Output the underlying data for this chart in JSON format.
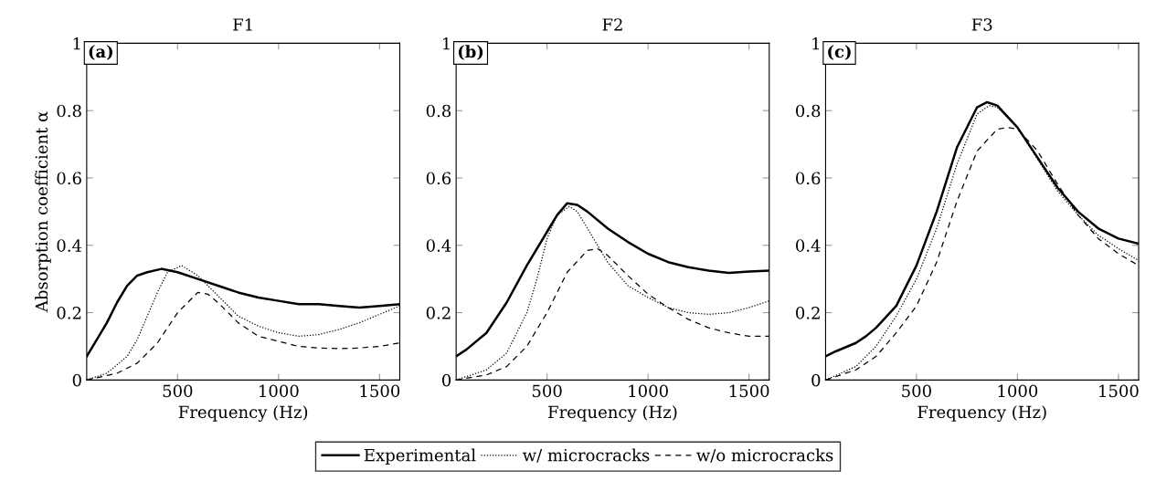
{
  "chart_data": [
    {
      "type": "line",
      "title": "F1",
      "xlabel": "Frequency (Hz)",
      "ylabel": "Absorption coefficient α",
      "annotations": [
        "(a)"
      ],
      "xlim": [
        50,
        1600
      ],
      "xticks": [
        500,
        1000,
        1500
      ],
      "ylim": [
        0,
        1
      ],
      "yticks": [
        0,
        0.2,
        0.4,
        0.6,
        0.8,
        1
      ],
      "legend": "bottom",
      "grid": false,
      "series": [
        {
          "name": "Experimental",
          "color": "#000000",
          "line_style": "solid",
          "x": [
            50,
            100,
            150,
            200,
            250,
            300,
            350,
            420,
            500,
            600,
            700,
            800,
            900,
            1000,
            1100,
            1200,
            1300,
            1400,
            1500,
            1600
          ],
          "values": [
            0.07,
            0.12,
            0.17,
            0.23,
            0.28,
            0.31,
            0.32,
            0.33,
            0.32,
            0.3,
            0.28,
            0.26,
            0.245,
            0.235,
            0.225,
            0.225,
            0.22,
            0.215,
            0.22,
            0.225
          ]
        },
        {
          "name": "w/ microcracks",
          "color": "#000000",
          "line_style": "dotted",
          "x": [
            50,
            150,
            250,
            300,
            350,
            400,
            450,
            520,
            600,
            700,
            800,
            900,
            1000,
            1100,
            1200,
            1300,
            1400,
            1500,
            1600
          ],
          "values": [
            0,
            0.02,
            0.07,
            0.12,
            0.19,
            0.26,
            0.32,
            0.34,
            0.31,
            0.25,
            0.19,
            0.16,
            0.14,
            0.13,
            0.135,
            0.15,
            0.17,
            0.195,
            0.22
          ]
        },
        {
          "name": "w/o microcracks",
          "color": "#000000",
          "line_style": "dashed",
          "x": [
            50,
            200,
            300,
            400,
            500,
            600,
            650,
            700,
            800,
            900,
            1000,
            1100,
            1200,
            1300,
            1400,
            1500,
            1600
          ],
          "values": [
            0,
            0.02,
            0.05,
            0.11,
            0.2,
            0.26,
            0.255,
            0.23,
            0.17,
            0.13,
            0.115,
            0.1,
            0.095,
            0.093,
            0.095,
            0.1,
            0.11
          ]
        }
      ]
    },
    {
      "type": "line",
      "title": "F2",
      "xlabel": "Frequency (Hz)",
      "annotations": [
        "(b)"
      ],
      "xlim": [
        50,
        1600
      ],
      "xticks": [
        500,
        1000,
        1500
      ],
      "ylim": [
        0,
        1
      ],
      "yticks": [
        0,
        0.2,
        0.4,
        0.6,
        0.8,
        1
      ],
      "grid": false,
      "series": [
        {
          "color": "#000000",
          "line_style": "solid",
          "x": [
            50,
            100,
            200,
            300,
            400,
            500,
            550,
            600,
            650,
            700,
            800,
            900,
            1000,
            1100,
            1200,
            1300,
            1400,
            1500,
            1600
          ],
          "values": [
            0.07,
            0.09,
            0.14,
            0.23,
            0.34,
            0.44,
            0.49,
            0.525,
            0.52,
            0.5,
            0.45,
            0.41,
            0.375,
            0.35,
            0.335,
            0.325,
            0.318,
            0.322,
            0.325
          ]
        },
        {
          "color": "#000000",
          "line_style": "dotted",
          "x": [
            50,
            200,
            300,
            400,
            450,
            500,
            550,
            610,
            650,
            700,
            800,
            900,
            1000,
            1100,
            1200,
            1300,
            1400,
            1500,
            1600
          ],
          "values": [
            0,
            0.03,
            0.08,
            0.2,
            0.3,
            0.42,
            0.49,
            0.515,
            0.5,
            0.45,
            0.35,
            0.28,
            0.245,
            0.215,
            0.2,
            0.195,
            0.2,
            0.215,
            0.235
          ]
        },
        {
          "color": "#000000",
          "line_style": "dashed",
          "x": [
            50,
            200,
            300,
            400,
            500,
            600,
            700,
            750,
            800,
            900,
            1000,
            1100,
            1200,
            1300,
            1400,
            1500,
            1600
          ],
          "values": [
            0,
            0.015,
            0.04,
            0.1,
            0.2,
            0.32,
            0.385,
            0.39,
            0.37,
            0.31,
            0.255,
            0.215,
            0.18,
            0.155,
            0.14,
            0.13,
            0.13
          ]
        }
      ]
    },
    {
      "type": "line",
      "title": "F3",
      "xlabel": "Frequency (Hz)",
      "annotations": [
        "(c)"
      ],
      "xlim": [
        50,
        1600
      ],
      "xticks": [
        500,
        1000,
        1500
      ],
      "ylim": [
        0,
        1
      ],
      "yticks": [
        0,
        0.2,
        0.4,
        0.6,
        0.8,
        1
      ],
      "grid": false,
      "series": [
        {
          "color": "#000000",
          "line_style": "solid",
          "x": [
            50,
            100,
            200,
            250,
            300,
            400,
            500,
            600,
            700,
            800,
            850,
            900,
            1000,
            1100,
            1200,
            1300,
            1400,
            1500,
            1600
          ],
          "values": [
            0.07,
            0.085,
            0.11,
            0.13,
            0.155,
            0.22,
            0.34,
            0.5,
            0.69,
            0.81,
            0.825,
            0.815,
            0.75,
            0.66,
            0.57,
            0.5,
            0.45,
            0.42,
            0.405
          ]
        },
        {
          "color": "#000000",
          "line_style": "dotted",
          "x": [
            50,
            200,
            300,
            400,
            500,
            600,
            700,
            800,
            860,
            900,
            1000,
            1100,
            1200,
            1300,
            1400,
            1500,
            1600
          ],
          "values": [
            0,
            0.04,
            0.1,
            0.19,
            0.3,
            0.45,
            0.64,
            0.79,
            0.815,
            0.81,
            0.75,
            0.655,
            0.56,
            0.49,
            0.43,
            0.39,
            0.355
          ]
        },
        {
          "color": "#000000",
          "line_style": "dashed",
          "x": [
            50,
            200,
            300,
            400,
            500,
            600,
            700,
            800,
            900,
            950,
            1000,
            1100,
            1200,
            1300,
            1400,
            1500,
            1600
          ],
          "values": [
            0,
            0.03,
            0.07,
            0.14,
            0.22,
            0.35,
            0.53,
            0.68,
            0.745,
            0.75,
            0.745,
            0.68,
            0.58,
            0.49,
            0.42,
            0.375,
            0.34
          ]
        }
      ]
    }
  ]
}
